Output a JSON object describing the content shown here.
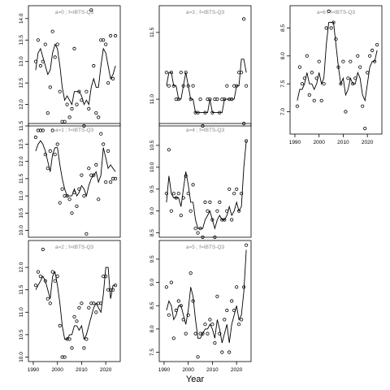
{
  "chart_data": {
    "type": "scatter",
    "xlabel": "Year",
    "charts": [
      {
        "title": "a=0 ; f=IBTS-Q3",
        "xlim": [
          1988,
          2026
        ],
        "ylim": [
          11.5,
          14.3
        ],
        "xticks": [],
        "yticks": [
          11.5,
          12.0,
          12.5,
          13.0,
          13.5,
          14.0
        ],
        "years": [
          1991,
          1992,
          1993,
          1994,
          1995,
          1996,
          1997,
          1998,
          1999,
          2000,
          2001,
          2002,
          2003,
          2004,
          2005,
          2006,
          2007,
          2008,
          2009,
          2010,
          2011,
          2012,
          2013,
          2014,
          2015,
          2016,
          2017,
          2018,
          2019,
          2020,
          2021,
          2022,
          2023,
          2024
        ],
        "points": [
          13.0,
          13.5,
          12.9,
          13.0,
          13.4,
          11.8,
          12.4,
          13.7,
          13.1,
          13.4,
          12.3,
          11.6,
          11.6,
          12.0,
          11.7,
          11.9,
          13.3,
          12.0,
          12.3,
          12.1,
          11.5,
          12.3,
          11.9,
          14.2,
          12.9,
          11.8,
          11.7,
          13.5,
          13.5,
          13.4,
          12.5,
          13.6,
          12.6,
          13.6
        ],
        "fit": [
          12.8,
          13.2,
          13.3,
          13.1,
          12.9,
          12.7,
          12.8,
          13.2,
          13.4,
          13.3,
          12.9,
          12.4,
          12.1,
          12.2,
          12.1,
          12.0,
          12.3,
          12.3,
          12.3,
          12.2,
          12.0,
          12.1,
          12.0,
          12.4,
          12.6,
          12.4,
          12.4,
          12.9,
          13.3,
          13.2,
          12.9,
          12.6,
          12.7,
          12.9
        ]
      },
      {
        "title": "a=1 ; f=IBTS-Q3",
        "xlim": [
          1988,
          2026
        ],
        "ylim": [
          9.8,
          13.1
        ],
        "xticks": [],
        "yticks": [
          10.0,
          10.5,
          11.0,
          11.5,
          12.0,
          12.5
        ],
        "years": [
          1991,
          1992,
          1993,
          1994,
          1995,
          1996,
          1997,
          1998,
          1999,
          2000,
          2001,
          2002,
          2003,
          2004,
          2005,
          2006,
          2007,
          2008,
          2009,
          2010,
          2011,
          2012,
          2013,
          2014,
          2015,
          2016,
          2017,
          2018,
          2019,
          2020,
          2021,
          2022,
          2023,
          2024
        ],
        "points": [
          12.7,
          12.9,
          12.9,
          12.9,
          12.2,
          11.8,
          12.3,
          12.9,
          12.2,
          12.5,
          10.8,
          11.2,
          11.0,
          11.0,
          10.9,
          10.5,
          11.1,
          10.7,
          11.2,
          11.6,
          11.0,
          9.9,
          11.8,
          11.6,
          11.6,
          11.9,
          10.9,
          12.8,
          12.5,
          11.4,
          12.3,
          11.4,
          11.5,
          11.5
        ],
        "fit": [
          12.3,
          12.5,
          12.6,
          12.5,
          12.3,
          12.0,
          11.7,
          12.2,
          12.4,
          12.4,
          11.9,
          11.5,
          11.2,
          11.0,
          11.0,
          11.0,
          11.2,
          11.0,
          11.1,
          11.3,
          11.2,
          11.0,
          11.3,
          11.5,
          11.6,
          11.7,
          11.4,
          11.6,
          12.4,
          12.1,
          11.8,
          11.9,
          11.8,
          11.7
        ]
      },
      {
        "title": "a=2 ; f=IBTS-Q3",
        "xlim": [
          1988,
          2026
        ],
        "ylim": [
          9.9,
          12.6
        ],
        "xticks": [
          1990,
          2000,
          2010,
          2020
        ],
        "yticks": [
          10.0,
          10.5,
          11.0,
          11.5,
          12.0
        ],
        "years": [
          1991,
          1992,
          1993,
          1994,
          1995,
          1996,
          1997,
          1998,
          1999,
          2000,
          2001,
          2002,
          2003,
          2004,
          2005,
          2006,
          2007,
          2008,
          2009,
          2010,
          2011,
          2012,
          2013,
          2014,
          2015,
          2016,
          2017,
          2018,
          2019,
          2020,
          2021,
          2022,
          2023,
          2024
        ],
        "points": [
          11.6,
          11.9,
          11.8,
          12.4,
          11.7,
          11.3,
          11.2,
          11.9,
          11.7,
          11.8,
          10.7,
          10.0,
          10.0,
          10.4,
          10.4,
          10.2,
          10.9,
          10.8,
          11.1,
          11.2,
          10.2,
          10.4,
          11.1,
          11.2,
          11.2,
          11.0,
          11.2,
          11.2,
          11.8,
          11.8,
          11.5,
          11.5,
          11.5,
          11.6
        ],
        "fit": [
          11.5,
          11.6,
          11.7,
          11.8,
          11.7,
          11.5,
          11.3,
          11.8,
          11.9,
          11.6,
          11.2,
          10.7,
          10.4,
          10.4,
          10.5,
          10.5,
          10.7,
          10.7,
          10.6,
          10.7,
          10.4,
          10.5,
          10.7,
          10.9,
          11.1,
          11.2,
          11.1,
          11.0,
          11.4,
          12.0,
          12.0,
          11.3,
          11.6,
          11.6
        ]
      },
      {
        "title": "a=3 ; f=IBTS-Q3",
        "xlim": [
          1988,
          2026
        ],
        "ylim": [
          10.8,
          11.7
        ],
        "xticks": [],
        "yticks": [
          11.0,
          11.5
        ],
        "years": [
          1991,
          1992,
          1993,
          1994,
          1995,
          1996,
          1997,
          1998,
          1999,
          2000,
          2001,
          2002,
          2003,
          2004,
          2005,
          2006,
          2007,
          2008,
          2009,
          2010,
          2011,
          2012,
          2013,
          2014,
          2015,
          2016,
          2017,
          2018,
          2019,
          2020,
          2021,
          2022,
          2023,
          2024
        ],
        "points": [
          11.2,
          11.1,
          11.2,
          11.1,
          11.0,
          11.0,
          11.2,
          11.1,
          11.2,
          11.1,
          11.0,
          11.1,
          10.9,
          10.9,
          11.0,
          10.8,
          10.9,
          11.0,
          11.0,
          10.9,
          11.0,
          11.0,
          10.9,
          11.0,
          11.0,
          11.1,
          11.0,
          11.0,
          11.1,
          11.1,
          11.2,
          11.2,
          11.6,
          11.1
        ],
        "fit": [
          11.1,
          11.2,
          11.2,
          11.1,
          11.1,
          11.0,
          11.0,
          11.1,
          11.2,
          11.1,
          11.0,
          11.0,
          10.9,
          10.9,
          10.9,
          10.9,
          10.9,
          10.9,
          11.0,
          10.9,
          10.9,
          10.9,
          10.9,
          10.9,
          11.0,
          11.0,
          11.0,
          11.0,
          11.0,
          11.1,
          11.1,
          11.3,
          11.3,
          11.2
        ]
      },
      {
        "title": "a=4 ; f=IBTS-Q3",
        "xlim": [
          1988,
          2026
        ],
        "ylim": [
          8.4,
          11.0
        ],
        "xticks": [],
        "yticks": [
          8.5,
          9.0,
          9.5,
          10.0,
          10.5
        ],
        "years": [
          1991,
          1992,
          1993,
          1994,
          1995,
          1996,
          1997,
          1998,
          1999,
          2000,
          2001,
          2002,
          2003,
          2004,
          2005,
          2006,
          2007,
          2008,
          2009,
          2010,
          2011,
          2012,
          2013,
          2014,
          2015,
          2016,
          2017,
          2018,
          2019,
          2020,
          2021,
          2022,
          2023,
          2024
        ],
        "points": [
          9.4,
          10.4,
          9.0,
          9.4,
          9.3,
          9.4,
          8.9,
          9.3,
          9.8,
          9.4,
          9.0,
          9.6,
          8.6,
          8.5,
          8.6,
          8.4,
          9.2,
          9.0,
          9.2,
          8.8,
          8.4,
          9.0,
          9.2,
          8.8,
          8.8,
          9.0,
          9.5,
          8.8,
          9.4,
          9.5,
          9.0,
          9.4,
          11.0,
          10.6
        ],
        "fit": [
          9.2,
          9.8,
          9.4,
          9.3,
          9.3,
          9.3,
          9.1,
          9.5,
          9.9,
          9.6,
          9.2,
          9.2,
          8.8,
          8.6,
          8.6,
          8.6,
          8.8,
          8.9,
          9.0,
          8.8,
          8.6,
          8.8,
          8.9,
          8.8,
          8.8,
          8.9,
          9.1,
          8.9,
          9.0,
          9.2,
          9.0,
          9.1,
          10.0,
          10.6
        ]
      },
      {
        "title": "a=5 ; f=IBTS-Q3",
        "xlim": [
          1988,
          2026
        ],
        "ylim": [
          7.3,
          9.9
        ],
        "xticks": [
          1990,
          2000,
          2010,
          2020
        ],
        "yticks": [
          7.5,
          8.0,
          8.5,
          9.0,
          9.5
        ],
        "years": [
          1991,
          1992,
          1993,
          1994,
          1995,
          1996,
          1997,
          1998,
          1999,
          2000,
          2001,
          2002,
          2003,
          2004,
          2005,
          2006,
          2007,
          2008,
          2009,
          2010,
          2011,
          2012,
          2013,
          2014,
          2015,
          2016,
          2017,
          2018,
          2019,
          2020,
          2021,
          2022,
          2023,
          2024
        ],
        "points": [
          8.9,
          8.3,
          9.0,
          7.8,
          8.4,
          8.6,
          8.5,
          8.2,
          7.9,
          8.3,
          9.2,
          8.6,
          7.9,
          7.4,
          7.9,
          7.9,
          8.1,
          7.9,
          8.2,
          8.1,
          7.7,
          8.7,
          7.9,
          7.5,
          8.2,
          8.4,
          7.5,
          8.6,
          8.4,
          8.9,
          8.1,
          8.2,
          8.9,
          9.8
        ],
        "fit": [
          8.4,
          8.6,
          8.5,
          8.2,
          8.3,
          8.5,
          8.5,
          8.3,
          8.1,
          8.4,
          8.9,
          8.7,
          8.2,
          7.8,
          7.8,
          7.9,
          8.0,
          8.0,
          8.1,
          8.0,
          7.8,
          8.2,
          8.0,
          7.7,
          7.9,
          8.1,
          7.7,
          8.1,
          8.3,
          8.5,
          8.2,
          8.3,
          8.8,
          9.7
        ]
      },
      {
        "title": "a=6 ; f=IBTS-Q3",
        "xlim": [
          1988,
          2026
        ],
        "ylim": [
          6.6,
          8.9
        ],
        "xticks": [
          1990,
          2000,
          2010,
          2020
        ],
        "yticks": [
          7.0,
          7.5,
          8.0,
          8.5
        ],
        "years": [
          1991,
          1992,
          1993,
          1994,
          1995,
          1996,
          1997,
          1998,
          1999,
          2000,
          2001,
          2002,
          2003,
          2004,
          2005,
          2006,
          2007,
          2008,
          2009,
          2010,
          2011,
          2012,
          2013,
          2014,
          2015,
          2016,
          2017,
          2018,
          2019,
          2020,
          2021,
          2022,
          2023,
          2024
        ],
        "points": [
          7.1,
          7.8,
          7.5,
          7.6,
          8.0,
          7.3,
          7.7,
          7.2,
          7.6,
          7.9,
          7.2,
          7.5,
          8.5,
          8.8,
          8.5,
          8.6,
          8.3,
          7.8,
          7.5,
          7.9,
          7.0,
          7.6,
          7.9,
          7.5,
          7.6,
          8.0,
          7.8,
          7.1,
          6.7,
          7.7,
          8.0,
          8.1,
          7.9,
          8.2
        ],
        "fit": [
          7.2,
          7.4,
          7.4,
          7.5,
          7.7,
          7.5,
          7.5,
          7.4,
          7.5,
          7.7,
          7.5,
          7.6,
          8.2,
          8.6,
          8.6,
          8.6,
          8.2,
          7.8,
          7.5,
          7.6,
          7.3,
          7.4,
          7.6,
          7.5,
          7.5,
          7.7,
          7.6,
          7.3,
          7.2,
          7.5,
          7.8,
          7.9,
          7.9,
          8.1
        ]
      }
    ]
  }
}
